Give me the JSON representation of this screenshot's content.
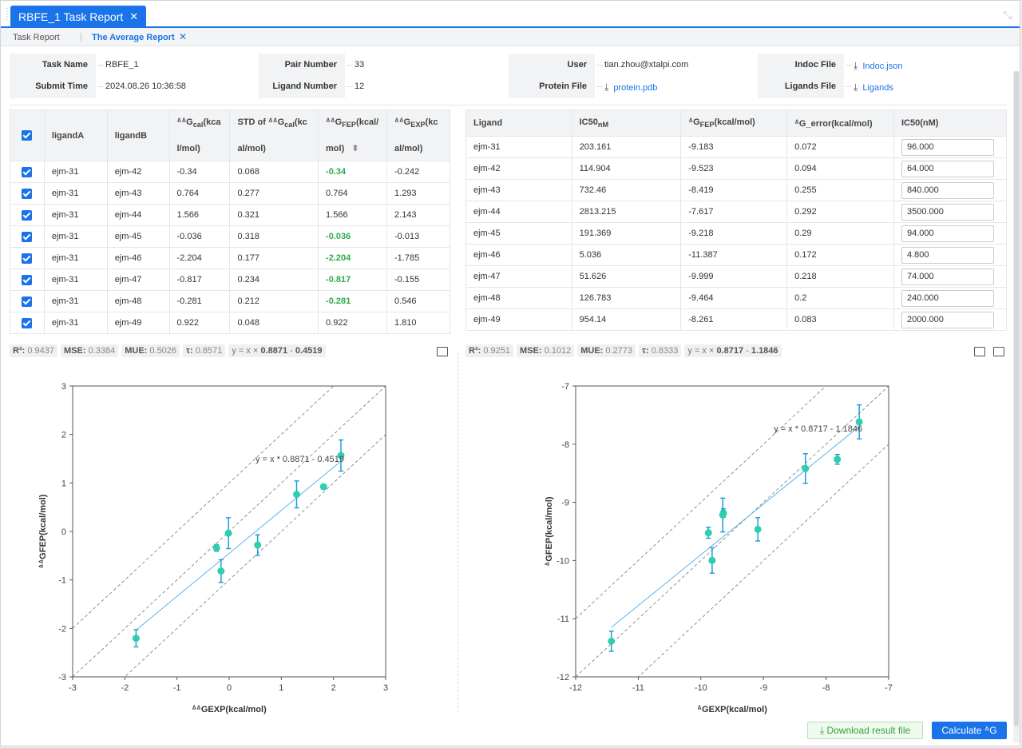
{
  "window": {
    "tab_title": "RBFE_1 Task Report",
    "close_glyph": "✕",
    "expand_glyph": "⤡"
  },
  "subtabs": {
    "tab1": "Task Report",
    "sep": "|",
    "tab2": "The Average Report",
    "tab2_close": "✕"
  },
  "info": {
    "task_name_label": "Task Name",
    "task_name": "RBFE_1",
    "submit_time_label": "Submit Time",
    "submit_time": "2024.08.26 10:36:58",
    "pair_number_label": "Pair Number",
    "pair_number": "33",
    "ligand_number_label": "Ligand Number",
    "ligand_number": "12",
    "user_label": "User",
    "user": "tian.zhou@xtalpi.com",
    "protein_file_label": "Protein File",
    "protein_file": "protein.pdb",
    "indoc_file_label": "Indoc File",
    "indoc_file": "Indoc.json",
    "ligands_file_label": "Ligands File",
    "ligands_file": "Ligands",
    "download_glyph": "⤓"
  },
  "pair_table": {
    "headers": {
      "ligandA": "ligandA",
      "ligandB": "ligandB",
      "ddg_cal_a": "ᐞᐞG",
      "ddg_cal_sub": "cal",
      "ddg_cal_b": "(kca",
      "ddg_cal_c": "l/mol)",
      "std_a": "STD of ᐞᐞG",
      "std_sub": "cal",
      "std_b": "(kc",
      "std_c": "al/mol)",
      "fep_a": "ᐞᐞG",
      "fep_sub": "FEP",
      "fep_b": "(kcal/",
      "fep_c": "mol)",
      "sort_glyph": "⬍",
      "exp_a": "ᐞᐞG",
      "exp_sub": "EXP",
      "exp_b": "(kc",
      "exp_c": "al/mol)"
    },
    "rows": [
      {
        "a": "ejm-31",
        "b": "ejm-42",
        "cal": "-0.34",
        "std": "0.068",
        "fep": "-0.34",
        "exp": "-0.242",
        "green": true
      },
      {
        "a": "ejm-31",
        "b": "ejm-43",
        "cal": "0.764",
        "std": "0.277",
        "fep": "0.764",
        "exp": "1.293",
        "green": false
      },
      {
        "a": "ejm-31",
        "b": "ejm-44",
        "cal": "1.566",
        "std": "0.321",
        "fep": "1.566",
        "exp": "2.143",
        "green": false
      },
      {
        "a": "ejm-31",
        "b": "ejm-45",
        "cal": "-0.036",
        "std": "0.318",
        "fep": "-0.036",
        "exp": "-0.013",
        "green": true
      },
      {
        "a": "ejm-31",
        "b": "ejm-46",
        "cal": "-2.204",
        "std": "0.177",
        "fep": "-2.204",
        "exp": "-1.785",
        "green": true
      },
      {
        "a": "ejm-31",
        "b": "ejm-47",
        "cal": "-0.817",
        "std": "0.234",
        "fep": "-0.817",
        "exp": "-0.155",
        "green": true
      },
      {
        "a": "ejm-31",
        "b": "ejm-48",
        "cal": "-0.281",
        "std": "0.212",
        "fep": "-0.281",
        "exp": "0.546",
        "green": true
      },
      {
        "a": "ejm-31",
        "b": "ejm-49",
        "cal": "0.922",
        "std": "0.048",
        "fep": "0.922",
        "exp": "1.810",
        "green": false
      }
    ]
  },
  "ligand_table": {
    "headers": {
      "ligand": "Ligand",
      "ic50_a": "IC50",
      "ic50_sub": "nM",
      "gfep_a": "ᐞG",
      "gfep_sub": "FEP",
      "gfep_b": "(kcal/mol)",
      "gerr": "ᐞG_error(kcal/mol)",
      "ic50nm": "IC50(nM)"
    },
    "rows": [
      {
        "lig": "ejm-31",
        "ic50": "203.161",
        "g": "-9.183",
        "err": "0.072",
        "inp": "96.000"
      },
      {
        "lig": "ejm-42",
        "ic50": "114.904",
        "g": "-9.523",
        "err": "0.094",
        "inp": "64.000"
      },
      {
        "lig": "ejm-43",
        "ic50": "732.46",
        "g": "-8.419",
        "err": "0.255",
        "inp": "840.000"
      },
      {
        "lig": "ejm-44",
        "ic50": "2813.215",
        "g": "-7.617",
        "err": "0.292",
        "inp": "3500.000"
      },
      {
        "lig": "ejm-45",
        "ic50": "191.369",
        "g": "-9.218",
        "err": "0.29",
        "inp": "94.000"
      },
      {
        "lig": "ejm-46",
        "ic50": "5.036",
        "g": "-11.387",
        "err": "0.172",
        "inp": "4.800"
      },
      {
        "lig": "ejm-47",
        "ic50": "51.626",
        "g": "-9.999",
        "err": "0.218",
        "inp": "74.000"
      },
      {
        "lig": "ejm-48",
        "ic50": "126.783",
        "g": "-9.464",
        "err": "0.2",
        "inp": "240.000"
      },
      {
        "lig": "ejm-49",
        "ic50": "954.14",
        "g": "-8.261",
        "err": "0.083",
        "inp": "2000.000"
      }
    ]
  },
  "stats_left": {
    "r2_l": "R²:",
    "r2": "0.9437",
    "mse_l": "MSE:",
    "mse": "0.3384",
    "mue_l": "MUE:",
    "mue": "0.5026",
    "tau_l": "τ:",
    "tau": "0.8571",
    "eq_a": "y = x ×",
    "eq_b": "0.8871",
    "eq_c": "-",
    "eq_d": "0.4519"
  },
  "stats_right": {
    "r2_l": "R²:",
    "r2": "0.9251",
    "mse_l": "MSE:",
    "mse": "0.1012",
    "mue_l": "MUE:",
    "mue": "0.2773",
    "tau_l": "τ:",
    "tau": "0.8333",
    "eq_a": "y = x ×",
    "eq_b": "0.8717",
    "eq_c": "-",
    "eq_d": "1.1846"
  },
  "chart_data": [
    {
      "type": "scatter",
      "xlabel": "ᐞᐞGEXP(kcal/mol)",
      "ylabel": "ᐞᐞGFEP(kcal/mol)",
      "xlim": [
        -3,
        3
      ],
      "ylim": [
        -3,
        3
      ],
      "xticks": [
        "-3",
        "-2",
        "-1",
        "0",
        "1",
        "2",
        "3"
      ],
      "yticks": [
        "-3",
        "-2",
        "-1",
        "0",
        "1",
        "2",
        "3"
      ],
      "annotation": "y = x * 0.8871 - 0.4519",
      "fit": {
        "slope": 0.8871,
        "intercept": -0.4519,
        "x_range": [
          -1.785,
          2.143
        ]
      },
      "bands": [
        -1,
        0,
        1
      ],
      "points": [
        {
          "x": -0.242,
          "y": -0.34,
          "err": 0.068
        },
        {
          "x": 1.293,
          "y": 0.764,
          "err": 0.277
        },
        {
          "x": 2.143,
          "y": 1.566,
          "err": 0.321
        },
        {
          "x": -0.013,
          "y": -0.036,
          "err": 0.318
        },
        {
          "x": -1.785,
          "y": -2.204,
          "err": 0.177
        },
        {
          "x": -0.155,
          "y": -0.817,
          "err": 0.234
        },
        {
          "x": 0.546,
          "y": -0.281,
          "err": 0.212
        },
        {
          "x": 1.81,
          "y": 0.922,
          "err": 0.048
        }
      ],
      "colors": {
        "point": "#2ecfae",
        "err": "#1e9fd6",
        "fit": "#5ab4e8"
      }
    },
    {
      "type": "scatter",
      "xlabel": "ᐞGEXP(kcal/mol)",
      "ylabel": "ᐞGFEP(kcal/mol)",
      "xlim": [
        -12,
        -7
      ],
      "ylim": [
        -12,
        -7
      ],
      "xticks": [
        "-12",
        "-11",
        "-10",
        "-9",
        "-8",
        "-7"
      ],
      "yticks": [
        "-12",
        "-11",
        "-10",
        "-9",
        "-8",
        "-7"
      ],
      "annotation": "y = x * 0.8717 - 1.1846",
      "fit": {
        "slope": 0.8717,
        "intercept": -1.1846,
        "x_range": [
          -11.43,
          -7.47
        ]
      },
      "bands": [
        -1,
        0,
        1
      ],
      "points": [
        {
          "x": -9.64,
          "y": -9.183,
          "err": 0.072
        },
        {
          "x": -9.88,
          "y": -9.523,
          "err": 0.094
        },
        {
          "x": -8.33,
          "y": -8.419,
          "err": 0.255
        },
        {
          "x": -7.47,
          "y": -7.617,
          "err": 0.292
        },
        {
          "x": -9.65,
          "y": -9.218,
          "err": 0.29
        },
        {
          "x": -11.43,
          "y": -11.387,
          "err": 0.172
        },
        {
          "x": -9.82,
          "y": -9.999,
          "err": 0.218
        },
        {
          "x": -9.09,
          "y": -9.464,
          "err": 0.2
        },
        {
          "x": -7.82,
          "y": -8.261,
          "err": 0.083
        }
      ],
      "colors": {
        "point": "#2ecfae",
        "err": "#1e9fd6",
        "fit": "#5ab4e8"
      }
    }
  ],
  "buttons": {
    "download": "⤓ Download result file",
    "calculate": "Calculate ᐞG"
  }
}
